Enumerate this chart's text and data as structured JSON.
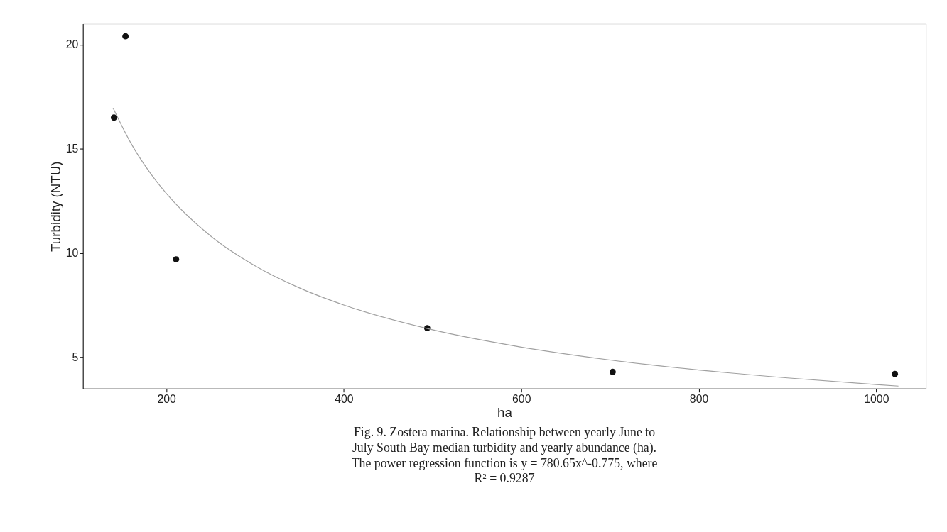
{
  "chart_data": {
    "type": "scatter",
    "xlabel": "ha",
    "ylabel": "Turbidity (NTU)",
    "xlim": [
      106,
      1056
    ],
    "ylim": [
      3.5,
      21
    ],
    "xticks": [
      200,
      400,
      600,
      800,
      1000
    ],
    "yticks": [
      5,
      10,
      15,
      20
    ],
    "grid": false,
    "series": [
      {
        "marker": "circle",
        "color": "#111111",
        "x": [
          141,
          154,
          211,
          494,
          703,
          1021
        ],
        "values": [
          16.5,
          20.4,
          9.7,
          6.4,
          4.3,
          4.2
        ]
      },
      {
        "type": "line",
        "marker": "none",
        "color": "#a0a0a0",
        "x": [
          140,
          160,
          180,
          200,
          250,
          300,
          350,
          400,
          500,
          600,
          700,
          800,
          900,
          1000,
          1025
        ],
        "values": [
          16.96,
          15.28,
          13.95,
          12.86,
          10.82,
          9.39,
          8.33,
          7.51,
          6.32,
          5.49,
          4.87,
          4.39,
          4.01,
          3.69,
          3.62
        ]
      }
    ],
    "annotations": [
      "Fig. 9. Zostera marina. Relationship between yearly June to",
      "July South Bay median turbidity and yearly abundance (ha).",
      "The power regression function is y = 780.65x^-0.775, where",
      "R² = 0.9287"
    ]
  }
}
